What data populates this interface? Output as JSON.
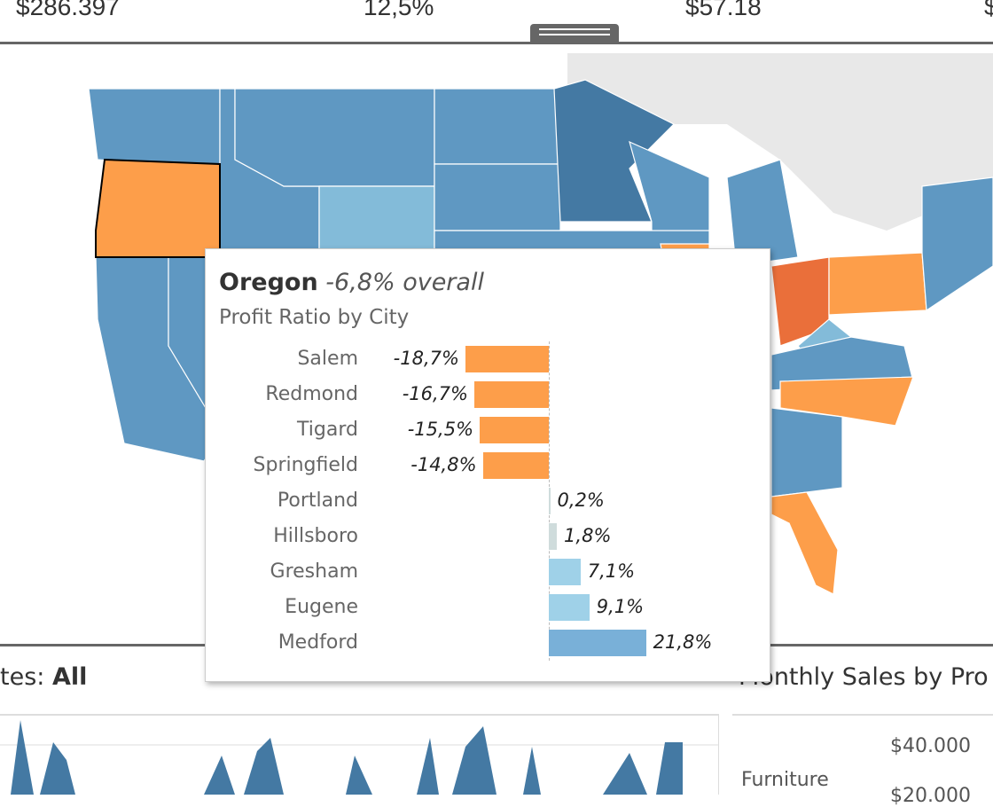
{
  "kpis": [
    "$286.397",
    "12,5%",
    "$57.18",
    "$"
  ],
  "tooltip": {
    "state": "Oregon",
    "overall": "-6,8% overall",
    "subtitle": "Profit Ratio by City",
    "rows": [
      {
        "city": "Salem",
        "value": -18.7,
        "label": "-18,7%",
        "color": "#fd9e4a"
      },
      {
        "city": "Redmond",
        "value": -16.7,
        "label": "-16,7%",
        "color": "#fd9e4a"
      },
      {
        "city": "Tigard",
        "value": -15.5,
        "label": "-15,5%",
        "color": "#fd9e4a"
      },
      {
        "city": "Springfield",
        "value": -14.8,
        "label": "-14,8%",
        "color": "#fd9e4a"
      },
      {
        "city": "Portland",
        "value": 0.2,
        "label": "0,2%",
        "color": "#cfdcdc"
      },
      {
        "city": "Hillsboro",
        "value": 1.8,
        "label": "1,8%",
        "color": "#cfdcdc"
      },
      {
        "city": "Gresham",
        "value": 7.1,
        "label": "7,1%",
        "color": "#9fd1e8"
      },
      {
        "city": "Eugene",
        "value": 9.1,
        "label": "9,1%",
        "color": "#9fd1e8"
      },
      {
        "city": "Medford",
        "value": 21.8,
        "label": "21,8%",
        "color": "#79b0d8"
      }
    ]
  },
  "bottom_left": {
    "title_prefix": "tes: ",
    "title_value": "All"
  },
  "bottom_right": {
    "title": "Monthly Sales by Pro",
    "category": "Furniture",
    "ticks": [
      "$40.000",
      "$20.000"
    ]
  },
  "colors": {
    "state_blue": "#5f98c2",
    "dark_blue": "#4479a3",
    "light_blue": "#83bbd9",
    "orange": "#fd9e4a",
    "dark_orange": "#ea6f3a"
  }
}
